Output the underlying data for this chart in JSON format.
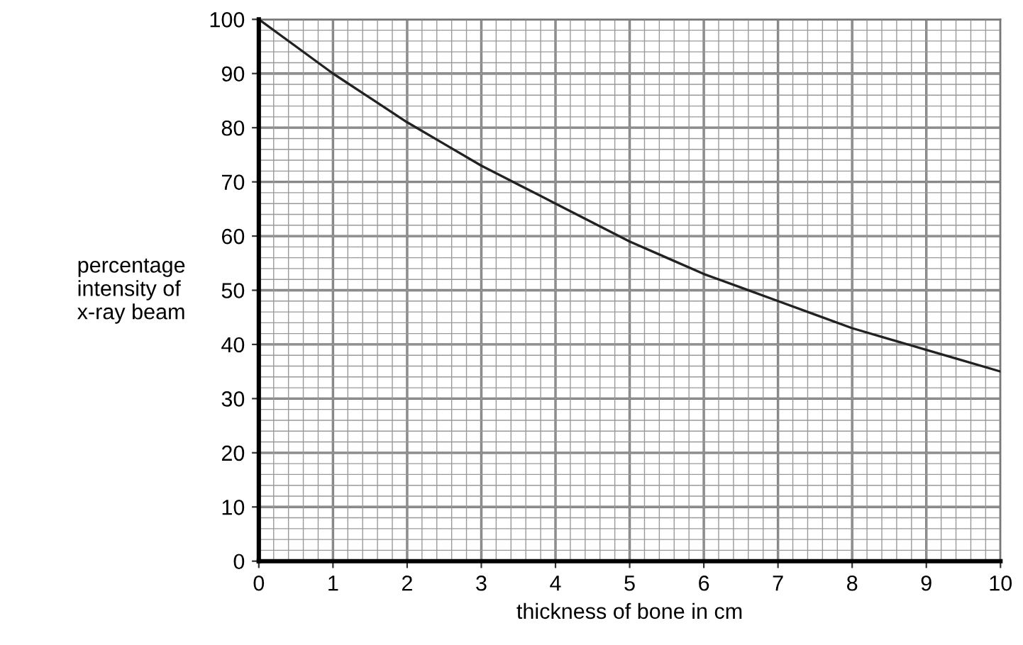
{
  "chart_data": {
    "type": "line",
    "xlabel": "thickness of bone in cm",
    "ylabel": "percentage\nintensity of\nx-ray beam",
    "x": [
      0,
      0.5,
      1,
      1.5,
      2,
      2.5,
      3,
      3.5,
      4,
      4.5,
      5,
      5.5,
      6,
      6.5,
      7,
      7.5,
      8,
      8.5,
      9,
      9.5,
      10
    ],
    "series": [
      {
        "color": "#222222",
        "values": [
          100,
          95,
          90,
          85.5,
          81,
          77,
          73,
          69.5,
          66,
          62.5,
          59,
          56,
          53,
          50.5,
          48,
          45.5,
          43,
          41,
          39,
          37,
          35
        ]
      }
    ],
    "xlim": [
      0,
      10
    ],
    "ylim": [
      0,
      100
    ],
    "xticks": [
      0,
      1,
      2,
      3,
      4,
      5,
      6,
      7,
      8,
      9,
      10
    ],
    "yticks": [
      0,
      10,
      20,
      30,
      40,
      50,
      60,
      70,
      80,
      90,
      100
    ],
    "grid": true,
    "marker": "none",
    "line_style": "solid"
  }
}
